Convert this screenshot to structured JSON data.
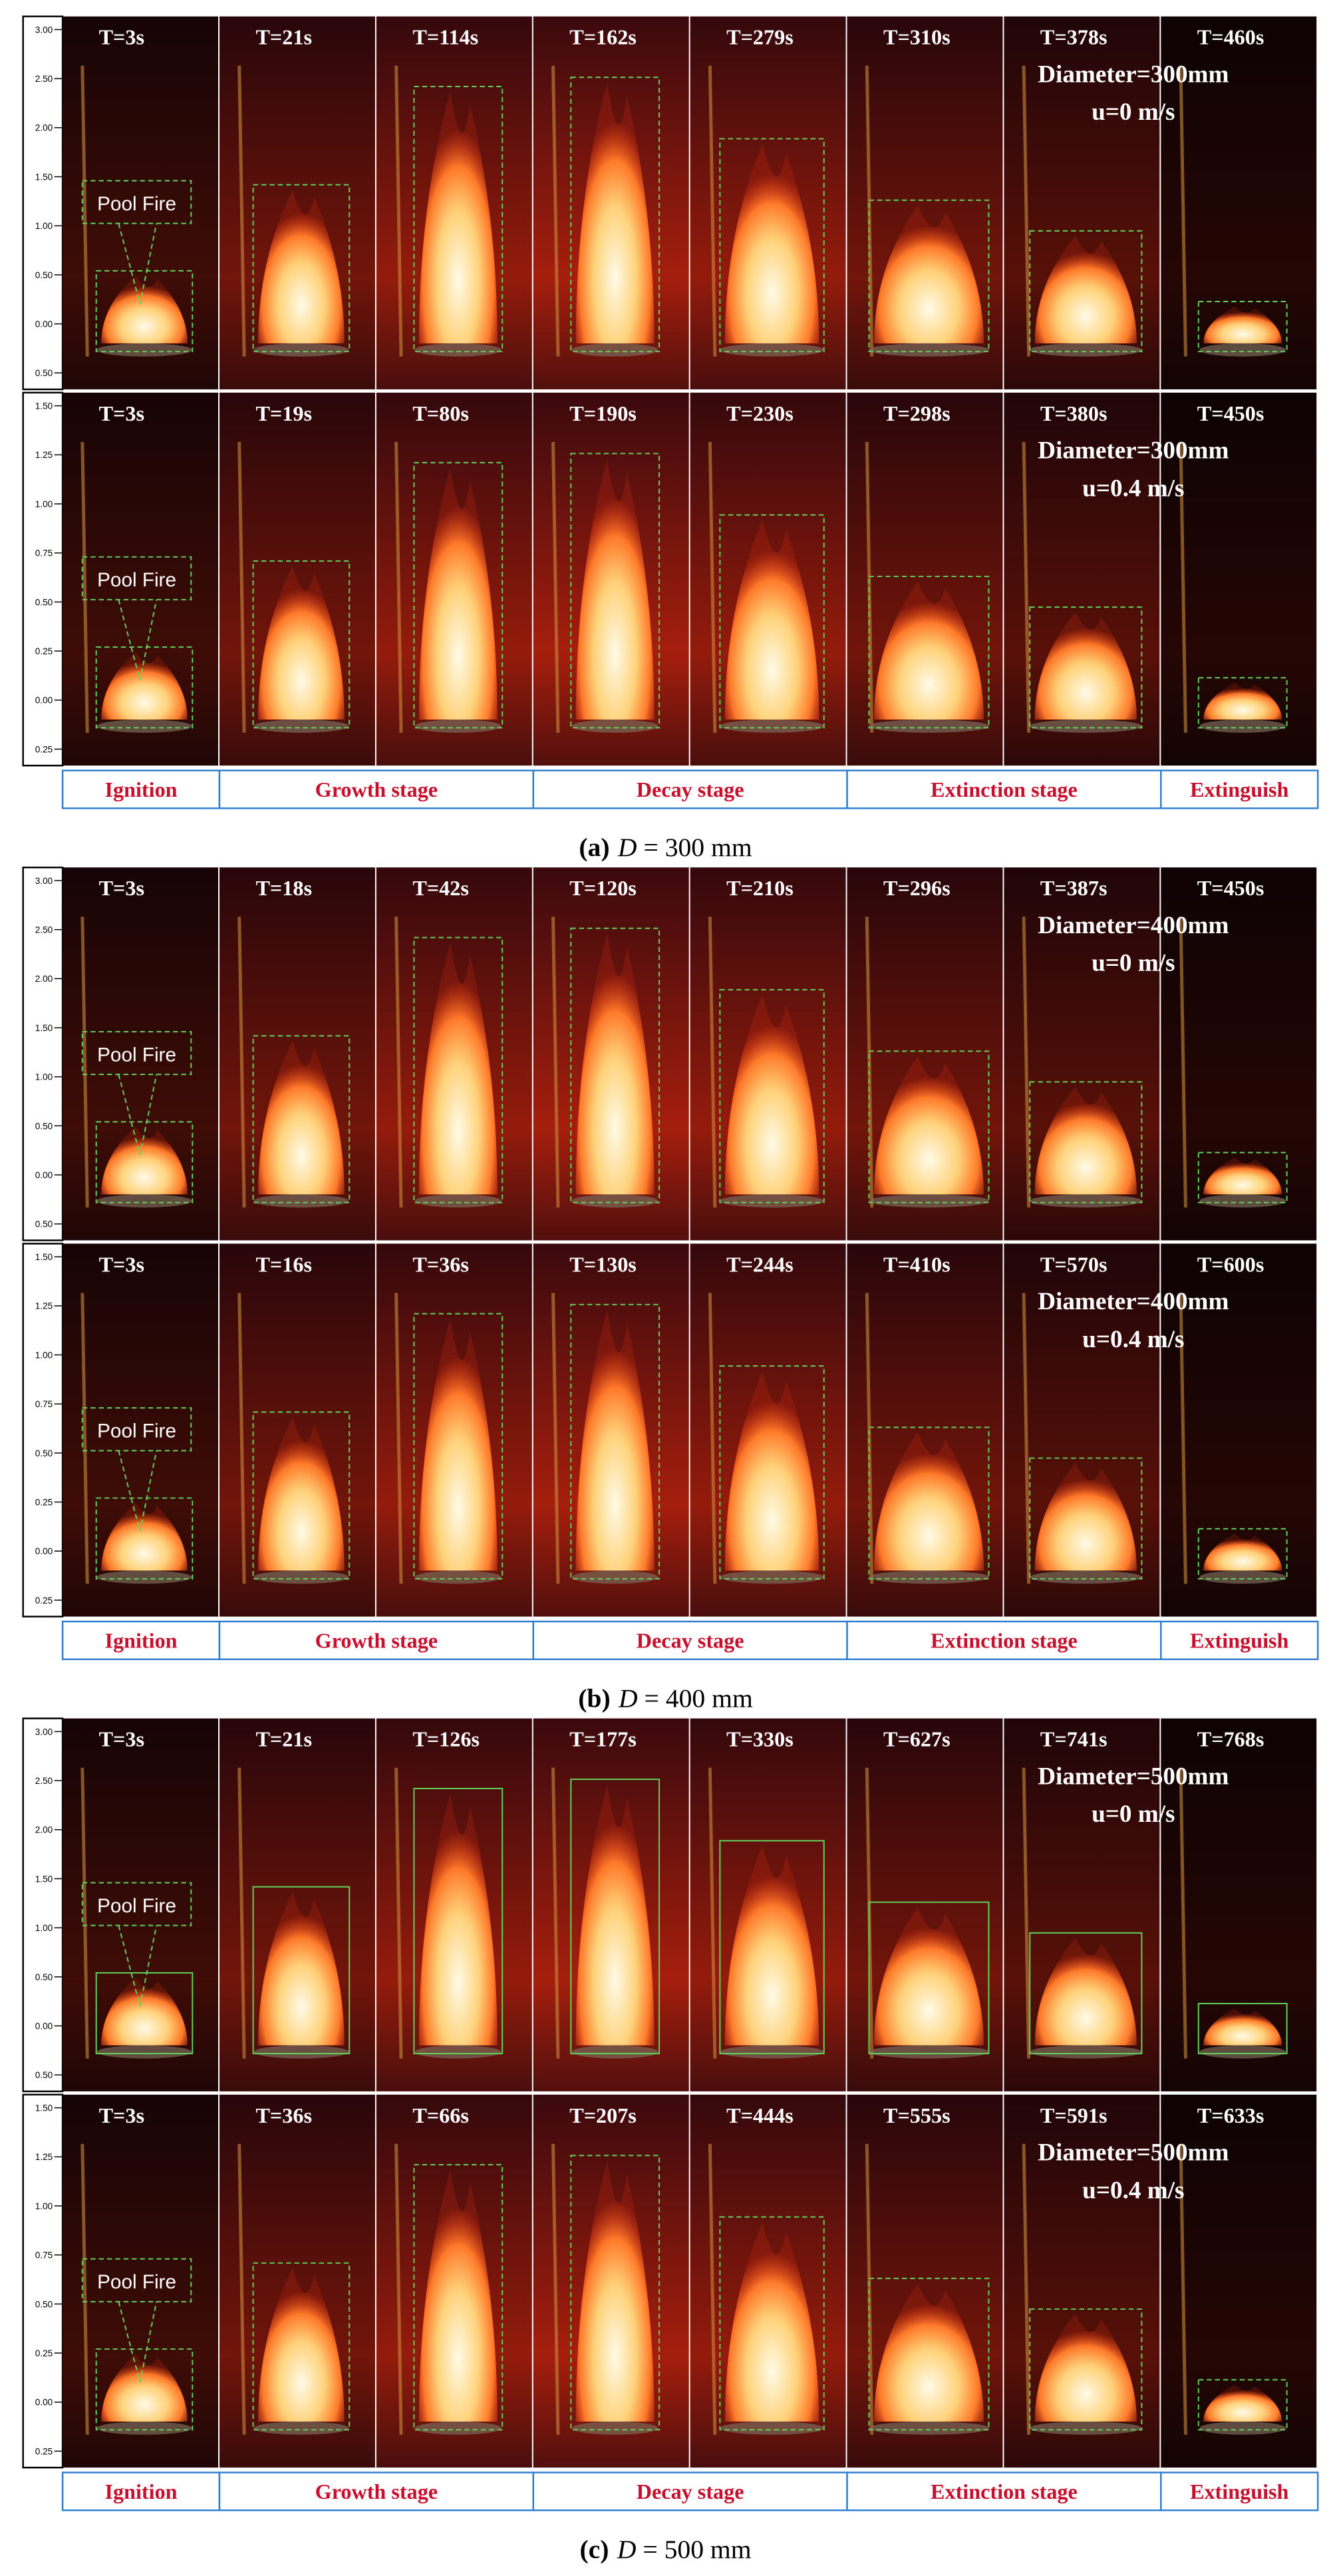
{
  "panels": [
    {
      "rows": [
        {
          "times": [
            "T=3s",
            "T=21s",
            "T=114s",
            "T=162s",
            "T=279s",
            "T=310s",
            "T=378s",
            "T=460s"
          ],
          "diameter": "Diameter=300mm",
          "velocity": "u=0 m/s",
          "scale": [
            "3.00",
            "2.50",
            "2.00",
            "1.50",
            "1.00",
            "0.50",
            "0.00",
            "0.50"
          ],
          "annotation": "Pool Fire"
        },
        {
          "times": [
            "T=3s",
            "T=19s",
            "T=80s",
            "T=190s",
            "T=230s",
            "T=298s",
            "T=380s",
            "T=450s"
          ],
          "diameter": "Diameter=300mm",
          "velocity": "u=0.4 m/s",
          "scale": [
            "1.50",
            "1.25",
            "1.00",
            "0.75",
            "0.50",
            "0.25",
            "0.00",
            "0.25"
          ],
          "annotation": "Pool Fire"
        }
      ],
      "stages": [
        "Ignition",
        "Growth stage",
        "Decay stage",
        "Extinction stage",
        "Extinguish"
      ],
      "caption": {
        "label": "(a)",
        "symbol": "D",
        "text": "= 300 mm"
      }
    },
    {
      "rows": [
        {
          "times": [
            "T=3s",
            "T=18s",
            "T=42s",
            "T=120s",
            "T=210s",
            "T=296s",
            "T=387s",
            "T=450s"
          ],
          "diameter": "Diameter=400mm",
          "velocity": "u=0 m/s",
          "scale": [
            "3.00",
            "2.50",
            "2.00",
            "1.50",
            "1.00",
            "0.50",
            "0.00",
            "0.50"
          ],
          "annotation": "Pool Fire"
        },
        {
          "times": [
            "T=3s",
            "T=16s",
            "T=36s",
            "T=130s",
            "T=244s",
            "T=410s",
            "T=570s",
            "T=600s"
          ],
          "diameter": "Diameter=400mm",
          "velocity": "u=0.4 m/s",
          "scale": [
            "1.50",
            "1.25",
            "1.00",
            "0.75",
            "0.50",
            "0.25",
            "0.00",
            "0.25"
          ],
          "annotation": "Pool Fire"
        }
      ],
      "stages": [
        "Ignition",
        "Growth stage",
        "Decay stage",
        "Extinction stage",
        "Extinguish"
      ],
      "caption": {
        "label": "(b)",
        "symbol": "D",
        "text": "= 400 mm"
      }
    },
    {
      "rows": [
        {
          "times": [
            "T=3s",
            "T=21s",
            "T=126s",
            "T=177s",
            "T=330s",
            "T=627s",
            "T=741s",
            "T=768s"
          ],
          "diameter": "Diameter=500mm",
          "velocity": "u=0 m/s",
          "scale": [
            "3.00",
            "2.50",
            "2.00",
            "1.50",
            "1.00",
            "0.50",
            "0.00",
            "0.50"
          ],
          "annotation": "Pool Fire"
        },
        {
          "times": [
            "T=3s",
            "T=36s",
            "T=66s",
            "T=207s",
            "T=444s",
            "T=555s",
            "T=591s",
            "T=633s"
          ],
          "diameter": "Diameter=500mm",
          "velocity": "u=0.4 m/s",
          "scale": [
            "1.50",
            "1.25",
            "1.00",
            "0.75",
            "0.50",
            "0.25",
            "0.00",
            "0.25"
          ],
          "annotation": "Pool Fire"
        }
      ],
      "stages": [
        "Ignition",
        "Growth stage",
        "Decay stage",
        "Extinction stage",
        "Extinguish"
      ],
      "caption": {
        "label": "(c)",
        "symbol": "D",
        "text": "= 500 mm"
      }
    }
  ]
}
